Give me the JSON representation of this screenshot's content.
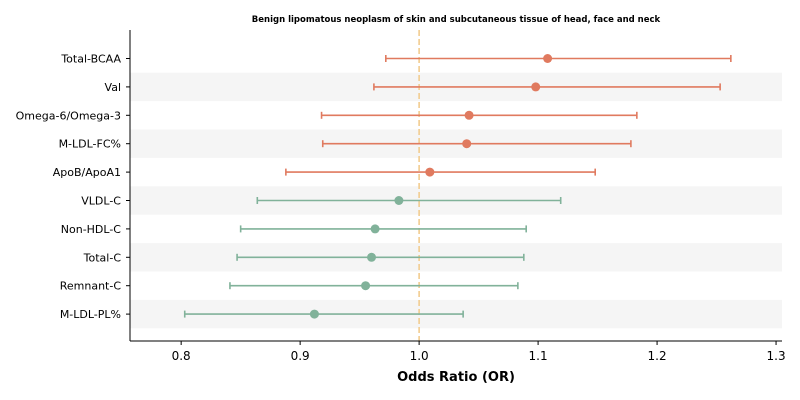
{
  "chart_data": {
    "type": "forest",
    "title": "Benign lipomatous neoplasm of skin and subcutaneous tissue of head, face and neck",
    "xlabel": "Odds Ratio (OR)",
    "ylabel": "",
    "xlim": [
      0.757,
      1.305
    ],
    "xticks": [
      0.8,
      0.9,
      1.0,
      1.1,
      1.2,
      1.3
    ],
    "xtick_labels": [
      "0.8",
      "0.9",
      "1.0",
      "1.1",
      "1.2",
      "1.3"
    ],
    "reference_line": 1.0,
    "grid": false,
    "colors": {
      "positive": "#e07a5f",
      "negative": "#81b29a",
      "reference": "#f2cc8f",
      "band": "#f5f5f5"
    },
    "rows": [
      {
        "label": "Total-BCAA",
        "or": 1.108,
        "lower": 0.972,
        "upper": 1.262
      },
      {
        "label": "Val",
        "or": 1.098,
        "lower": 0.962,
        "upper": 1.253
      },
      {
        "label": "Omega-6/Omega-3",
        "or": 1.042,
        "lower": 0.918,
        "upper": 1.183
      },
      {
        "label": "M-LDL-FC%",
        "or": 1.04,
        "lower": 0.919,
        "upper": 1.178
      },
      {
        "label": "ApoB/ApoA1",
        "or": 1.009,
        "lower": 0.888,
        "upper": 1.148
      },
      {
        "label": "VLDL-C",
        "or": 0.983,
        "lower": 0.864,
        "upper": 1.119
      },
      {
        "label": "Non-HDL-C",
        "or": 0.963,
        "lower": 0.85,
        "upper": 1.09
      },
      {
        "label": "Total-C",
        "or": 0.96,
        "lower": 0.847,
        "upper": 1.088
      },
      {
        "label": "Remnant-C",
        "or": 0.955,
        "lower": 0.841,
        "upper": 1.083
      },
      {
        "label": "M-LDL-PL%",
        "or": 0.912,
        "lower": 0.803,
        "upper": 1.037
      }
    ]
  }
}
